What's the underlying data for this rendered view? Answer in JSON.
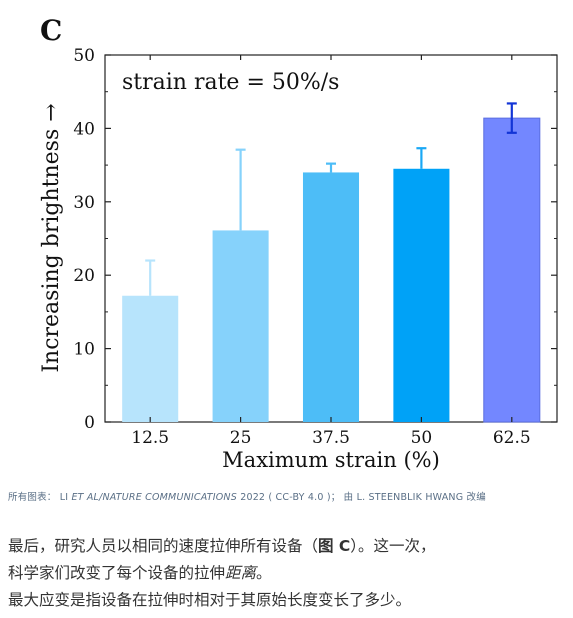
{
  "chart_data": {
    "type": "bar",
    "panel_label": "C",
    "annotation": "strain rate = 50%/s",
    "xlabel": "Maximum strain (%)",
    "ylabel": "Increasing brightness →",
    "categories": [
      "12.5",
      "25",
      "37.5",
      "50",
      "62.5"
    ],
    "values": [
      17.2,
      26.1,
      34.0,
      34.5,
      41.4
    ],
    "error": [
      4.8,
      11.0,
      1.2,
      2.8,
      2.0
    ],
    "ylim": [
      0,
      50
    ],
    "yticks": [
      "0",
      "10",
      "20",
      "30",
      "40",
      "50"
    ],
    "colors": [
      "#b7e4fc",
      "#86d2fb",
      "#4dbdf7",
      "#00a2f7",
      "#7387ff"
    ],
    "error_colors": [
      "#b7e4fc",
      "#86d2fb",
      "#4dbdf7",
      "#1aa8f5",
      "#1235d6"
    ],
    "grid": false
  },
  "caption": {
    "prefix": "所有图表： LI ",
    "italic_part": "ET AL/NATURE COMMUNICATIONS",
    "suffix": " 2022 ( CC-BY 4.0 )； 由 L. STEENBLIK HWANG 改编"
  },
  "body": {
    "line1_before": "最后，研究人员以相同的速度拉伸所有设备（",
    "line1_bold": "图 C",
    "line1_after": "）。这一次，",
    "line2_before": "科学家们改变了每个设备的拉伸",
    "line2_italic": "距离",
    "line2_after": "。",
    "line3": "最大应变是指设备在拉伸时相对于其原始长度变长了多少。"
  }
}
